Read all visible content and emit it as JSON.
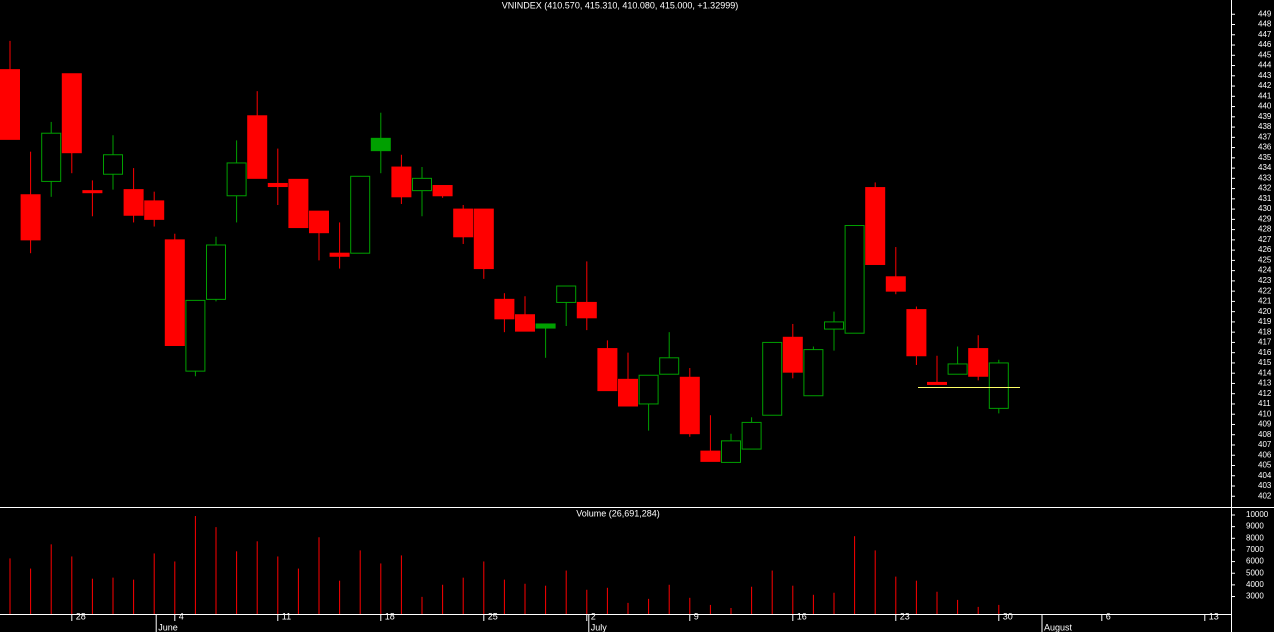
{
  "chart_data": {
    "type": "candlestick",
    "title": "VNINDEX (410.570, 415.310, 410.080, 415.000, +1.32999)",
    "volume_title": "Volume (26,691,284)",
    "categories": [
      null,
      null,
      null,
      "28",
      null,
      null,
      null,
      null,
      "4",
      null,
      null,
      null,
      null,
      "11",
      null,
      null,
      null,
      null,
      "18",
      null,
      null,
      null,
      null,
      "25",
      null,
      null,
      null,
      null,
      "2",
      null,
      null,
      null,
      null,
      "9",
      null,
      null,
      null,
      null,
      "16",
      null,
      null,
      null,
      null,
      "23",
      null,
      null,
      null,
      null,
      "30",
      null,
      null,
      null,
      null,
      "6",
      null,
      null,
      null,
      null,
      "13",
      null
    ],
    "months": [
      {
        "label": "June",
        "category": 7
      },
      {
        "label": "July",
        "category": 28
      },
      {
        "label": "August",
        "category": 50
      }
    ],
    "open": [
      443.6,
      431.4,
      432.7,
      443.2,
      431.8,
      433.4,
      431.9,
      430.8,
      427.0,
      414.2,
      421.2,
      431.3,
      439.1,
      432.5,
      432.9,
      429.8,
      425.7,
      425.7,
      436.9,
      434.1,
      431.8,
      432.3,
      430.0,
      430.0,
      421.2,
      419.7,
      418.8,
      420.9,
      420.9,
      416.4,
      413.4,
      411.0,
      413.9,
      413.6,
      406.4,
      405.3,
      406.6,
      409.9,
      417.5,
      411.8,
      418.3,
      417.9,
      432.1,
      423.4,
      420.2,
      413.1,
      413.9,
      416.4,
      410.57,
      null,
      null,
      null,
      null,
      null,
      null,
      null,
      null,
      null,
      null,
      null
    ],
    "high": [
      446.4,
      435.6,
      438.5,
      443.2,
      432.8,
      437.2,
      434.0,
      431.7,
      427.6,
      421.1,
      427.3,
      436.7,
      441.5,
      435.9,
      432.9,
      429.8,
      428.7,
      433.2,
      439.4,
      435.3,
      434.1,
      432.3,
      430.4,
      430.0,
      421.8,
      421.5,
      418.8,
      422.5,
      424.9,
      417.2,
      416.0,
      413.8,
      418.0,
      414.5,
      409.9,
      408.1,
      409.7,
      417.0,
      418.8,
      416.6,
      420.0,
      428.4,
      432.6,
      426.3,
      420.5,
      415.7,
      416.6,
      417.7,
      415.31,
      null,
      null,
      null,
      null,
      null,
      null,
      null,
      null,
      null,
      null,
      null
    ],
    "low": [
      436.8,
      425.7,
      431.2,
      433.5,
      429.3,
      431.9,
      428.7,
      428.3,
      416.7,
      413.7,
      421.0,
      428.7,
      433.0,
      430.4,
      428.2,
      425.0,
      424.2,
      425.7,
      433.5,
      430.5,
      429.3,
      431.1,
      426.6,
      423.2,
      418.0,
      418.1,
      415.5,
      418.6,
      418.2,
      412.3,
      410.8,
      408.4,
      413.9,
      407.8,
      405.4,
      405.3,
      406.6,
      409.9,
      413.5,
      411.8,
      416.2,
      417.9,
      424.6,
      421.7,
      414.8,
      412.9,
      413.9,
      413.3,
      410.08,
      null,
      null,
      null,
      null,
      null,
      null,
      null,
      null,
      null,
      null,
      null
    ],
    "close": [
      436.8,
      427.0,
      437.4,
      435.5,
      431.6,
      435.3,
      429.4,
      429.0,
      416.7,
      421.1,
      426.5,
      434.5,
      433.0,
      432.2,
      428.2,
      427.7,
      425.4,
      433.2,
      435.7,
      431.2,
      433.0,
      431.3,
      427.3,
      424.2,
      419.3,
      418.1,
      418.4,
      422.5,
      419.4,
      412.3,
      410.8,
      413.8,
      415.5,
      408.1,
      405.4,
      407.4,
      409.2,
      417.0,
      414.1,
      416.3,
      419.0,
      428.4,
      424.6,
      422.0,
      415.7,
      412.9,
      414.9,
      413.7,
      415.0,
      null,
      null,
      null,
      null,
      null,
      null,
      null,
      null,
      null,
      null,
      null
    ],
    "colors": [
      "#ff0000",
      "#ff0000",
      "#00a000",
      "#ff0000",
      "#ff0000",
      "#00a000",
      "#ff0000",
      "#ff0000",
      "#ff0000",
      "#00a000",
      "#00a000",
      "#00a000",
      "#ff0000",
      "#ff0000",
      "#ff0000",
      "#ff0000",
      "#ff0000",
      "#00a000",
      "#00a000",
      "#ff0000",
      "#00a000",
      "#ff0000",
      "#ff0000",
      "#ff0000",
      "#ff0000",
      "#ff0000",
      "#00a000",
      "#00a000",
      "#ff0000",
      "#ff0000",
      "#ff0000",
      "#00a000",
      "#00a000",
      "#ff0000",
      "#ff0000",
      "#00a000",
      "#00a000",
      "#00a000",
      "#ff0000",
      "#00a000",
      "#00a000",
      "#00a000",
      "#ff0000",
      "#ff0000",
      "#ff0000",
      "#ff0000",
      "#00a000",
      "#ff0000",
      "#00a000",
      null,
      null,
      null,
      null,
      null,
      null,
      null,
      null,
      null,
      null,
      null
    ],
    "volume": [
      6270,
      5400,
      7480,
      6440,
      4530,
      4620,
      4450,
      6700,
      6010,
      9910,
      8960,
      6880,
      7740,
      6440,
      5400,
      8090,
      4360,
      6960,
      5840,
      6530,
      2970,
      4010,
      4620,
      6010,
      4450,
      4100,
      3930,
      5230,
      3580,
      3750,
      2450,
      2800,
      4010,
      2890,
      2280,
      2020,
      3840,
      5230,
      3930,
      3150,
      3320,
      8180,
      6960,
      4710,
      4360,
      3410,
      2710,
      2110,
      2280,
      null,
      null,
      null,
      null,
      null,
      null,
      null,
      null,
      null,
      null,
      null
    ],
    "volume_color": "#ff0000",
    "hline": {
      "value": 412.6,
      "color": "#ffff66"
    },
    "ylim": [
      401,
      450
    ],
    "yticks": [
      402,
      403,
      404,
      405,
      406,
      407,
      408,
      409,
      410,
      411,
      412,
      413,
      414,
      415,
      416,
      417,
      418,
      419,
      420,
      421,
      422,
      423,
      424,
      425,
      426,
      427,
      428,
      429,
      430,
      431,
      432,
      433,
      434,
      435,
      436,
      437,
      438,
      439,
      440,
      441,
      442,
      443,
      444,
      445,
      446,
      447,
      448,
      449
    ],
    "y2lim": [
      1500,
      10600
    ],
    "y2ticks": [
      3000,
      4000,
      5000,
      6000,
      7000,
      8000,
      9000,
      10000
    ]
  }
}
